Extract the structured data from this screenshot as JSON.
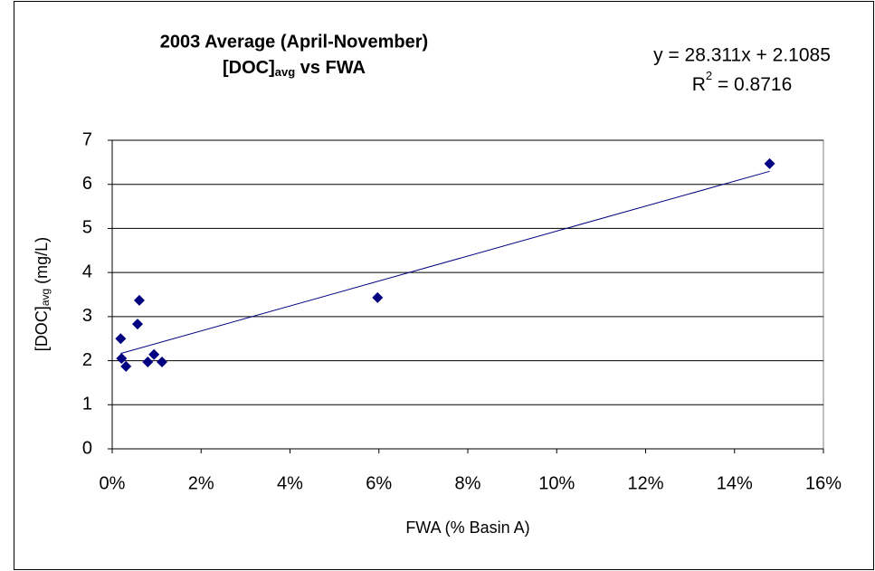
{
  "chart_data": {
    "type": "scatter",
    "title": {
      "line1": "2003 Average (April-November)",
      "line2": {
        "prefix": "[DOC]",
        "subscript": "avg",
        "suffix": " vs FWA"
      }
    },
    "x_label": "FWA (% Basin A)",
    "y_label": {
      "prefix": "[DOC]",
      "subscript": "avg",
      "suffix": " (mg/L)"
    },
    "series": [
      {
        "color": "#000080",
        "x": [
          0.0019,
          0.0021,
          0.0031,
          0.0057,
          0.0061,
          0.008,
          0.0094,
          0.0112,
          0.0597,
          0.1479
        ],
        "values": [
          2.5,
          2.05,
          1.87,
          2.83,
          3.37,
          1.97,
          2.14,
          1.97,
          3.43,
          6.47
        ]
      }
    ],
    "trendline": {
      "slope": 28.311,
      "intercept": 2.1085,
      "color": "#000080",
      "equation": "y = 28.311x + 2.1085",
      "r_squared": {
        "base": "R",
        "superscript": "2",
        "rest": " = 0.8716"
      }
    },
    "xlim": [
      0,
      0.16
    ],
    "xticks": [
      {
        "value": 0,
        "label": "0%"
      },
      {
        "value": 0.02,
        "label": "2%"
      },
      {
        "value": 0.04,
        "label": "4%"
      },
      {
        "value": 0.06,
        "label": "6%"
      },
      {
        "value": 0.08,
        "label": "8%"
      },
      {
        "value": 0.1,
        "label": "10%"
      },
      {
        "value": 0.12,
        "label": "12%"
      },
      {
        "value": 0.14,
        "label": "14%"
      },
      {
        "value": 0.16,
        "label": "16%"
      }
    ],
    "ylim": [
      0,
      7
    ],
    "yticks": [
      0,
      1,
      2,
      3,
      4,
      5,
      6,
      7
    ],
    "grid": true
  }
}
